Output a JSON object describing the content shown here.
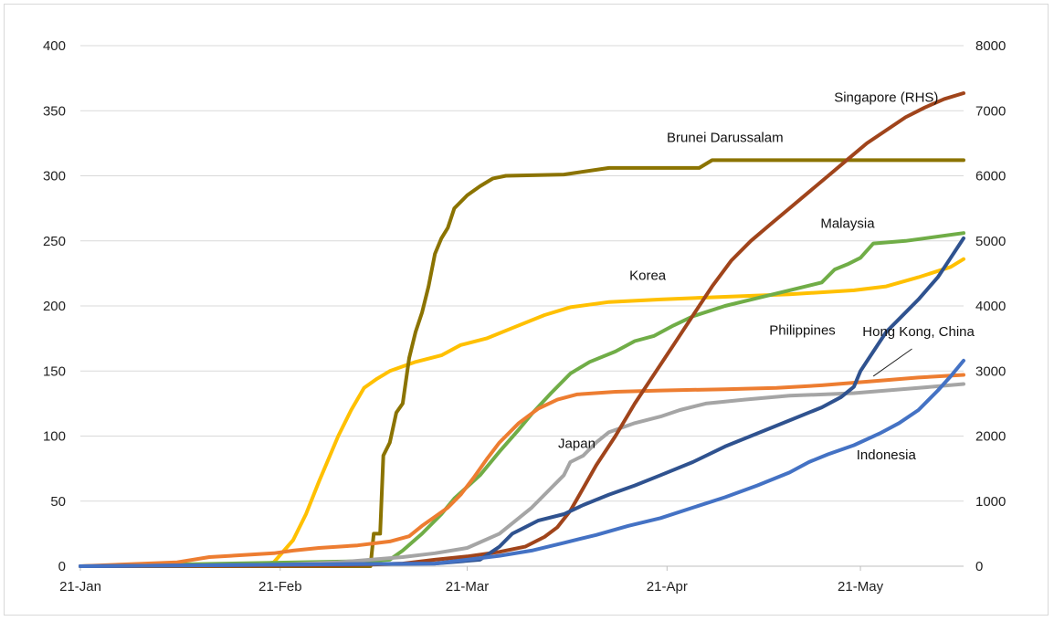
{
  "chart_data": {
    "type": "line",
    "x_labels": [
      "21-Jan",
      "21-Feb",
      "21-Mar",
      "21-Apr",
      "21-May"
    ],
    "x_range_days": [
      0,
      137
    ],
    "left_axis": {
      "ylim": [
        0,
        400
      ],
      "ticks": [
        "0",
        "50",
        "100",
        "150",
        "200",
        "250",
        "300",
        "350",
        "400"
      ]
    },
    "right_axis": {
      "ylim": [
        0,
        8000
      ],
      "ticks": [
        "0",
        "1000",
        "2000",
        "3000",
        "4000",
        "5000",
        "6000",
        "7000",
        "8000"
      ]
    },
    "grid": true,
    "series": [
      {
        "name": "Korea",
        "axis": "left",
        "color": "#FFC000",
        "points": [
          [
            0,
            0
          ],
          [
            27,
            0
          ],
          [
            30,
            3
          ],
          [
            33,
            20
          ],
          [
            35,
            40
          ],
          [
            37,
            65
          ],
          [
            40,
            100
          ],
          [
            42,
            120
          ],
          [
            44,
            137
          ],
          [
            46,
            144
          ],
          [
            48,
            150
          ],
          [
            52,
            157
          ],
          [
            56,
            162
          ],
          [
            59,
            170
          ],
          [
            63,
            175
          ],
          [
            67,
            183
          ],
          [
            72,
            193
          ],
          [
            76,
            199
          ],
          [
            82,
            203
          ],
          [
            90,
            205
          ],
          [
            100,
            207
          ],
          [
            110,
            209
          ],
          [
            120,
            212
          ],
          [
            125,
            215
          ],
          [
            130,
            222
          ],
          [
            135,
            230
          ],
          [
            137,
            236
          ]
        ]
      },
      {
        "name": "Brunei Darussalam",
        "axis": "left",
        "color": "#8B7300",
        "points": [
          [
            0,
            0
          ],
          [
            45,
            0
          ],
          [
            45.5,
            25
          ],
          [
            46.5,
            25
          ],
          [
            47,
            85
          ],
          [
            48,
            95
          ],
          [
            49,
            118
          ],
          [
            50,
            125
          ],
          [
            51,
            160
          ],
          [
            52,
            180
          ],
          [
            53,
            195
          ],
          [
            54,
            215
          ],
          [
            55,
            240
          ],
          [
            56,
            252
          ],
          [
            57,
            260
          ],
          [
            58,
            275
          ],
          [
            60,
            285
          ],
          [
            62,
            292
          ],
          [
            64,
            298
          ],
          [
            66,
            300
          ],
          [
            75,
            301
          ],
          [
            82,
            306
          ],
          [
            96,
            306
          ],
          [
            98,
            312
          ],
          [
            137,
            312
          ]
        ]
      },
      {
        "name": "Malaysia",
        "axis": "left",
        "color": "#70AD47",
        "points": [
          [
            0,
            0
          ],
          [
            45,
            4
          ],
          [
            48,
            5
          ],
          [
            50,
            12
          ],
          [
            53,
            25
          ],
          [
            56,
            40
          ],
          [
            58,
            52
          ],
          [
            62,
            70
          ],
          [
            65,
            88
          ],
          [
            68,
            105
          ],
          [
            70,
            117
          ],
          [
            73,
            133
          ],
          [
            76,
            148
          ],
          [
            79,
            157
          ],
          [
            83,
            165
          ],
          [
            86,
            173
          ],
          [
            89,
            177
          ],
          [
            92,
            185
          ],
          [
            95,
            192
          ],
          [
            100,
            200
          ],
          [
            105,
            206
          ],
          [
            110,
            212
          ],
          [
            115,
            218
          ],
          [
            117,
            228
          ],
          [
            119,
            232
          ],
          [
            121,
            237
          ],
          [
            123,
            248
          ],
          [
            128,
            250
          ],
          [
            137,
            256
          ]
        ]
      },
      {
        "name": "Hong Kong, China",
        "axis": "left",
        "color": "#ED7D31",
        "points": [
          [
            0,
            0
          ],
          [
            15,
            3
          ],
          [
            20,
            7
          ],
          [
            30,
            10
          ],
          [
            33,
            12
          ],
          [
            37,
            14
          ],
          [
            43,
            16
          ],
          [
            48,
            19
          ],
          [
            51,
            23
          ],
          [
            53,
            31
          ],
          [
            55,
            38
          ],
          [
            57,
            45
          ],
          [
            59,
            55
          ],
          [
            61,
            68
          ],
          [
            63,
            82
          ],
          [
            65,
            95
          ],
          [
            68,
            110
          ],
          [
            71,
            121
          ],
          [
            74,
            128
          ],
          [
            77,
            132
          ],
          [
            83,
            134
          ],
          [
            90,
            135
          ],
          [
            100,
            136
          ],
          [
            108,
            137
          ],
          [
            115,
            139
          ],
          [
            125,
            143
          ],
          [
            130,
            145
          ],
          [
            137,
            147
          ]
        ]
      },
      {
        "name": "Japan",
        "axis": "left",
        "color": "#A5A5A5",
        "points": [
          [
            0,
            0
          ],
          [
            30,
            1
          ],
          [
            40,
            3
          ],
          [
            45,
            5
          ],
          [
            50,
            7
          ],
          [
            55,
            10
          ],
          [
            60,
            14
          ],
          [
            65,
            25
          ],
          [
            70,
            45
          ],
          [
            73,
            60
          ],
          [
            75,
            70
          ],
          [
            76,
            80
          ],
          [
            78,
            85
          ],
          [
            80,
            95
          ],
          [
            82,
            103
          ],
          [
            86,
            110
          ],
          [
            90,
            115
          ],
          [
            93,
            120
          ],
          [
            97,
            125
          ],
          [
            103,
            128
          ],
          [
            110,
            131
          ],
          [
            120,
            133
          ],
          [
            130,
            137
          ],
          [
            137,
            140
          ]
        ]
      },
      {
        "name": "Singapore (RHS)",
        "axis": "right",
        "color": "#A0441B",
        "points": [
          [
            0,
            0
          ],
          [
            40,
            10
          ],
          [
            50,
            40
          ],
          [
            55,
            100
          ],
          [
            60,
            150
          ],
          [
            65,
            220
          ],
          [
            69,
            300
          ],
          [
            72,
            450
          ],
          [
            74,
            600
          ],
          [
            76,
            850
          ],
          [
            78,
            1200
          ],
          [
            80,
            1550
          ],
          [
            83,
            2000
          ],
          [
            86,
            2500
          ],
          [
            89,
            2950
          ],
          [
            92,
            3400
          ],
          [
            95,
            3850
          ],
          [
            98,
            4300
          ],
          [
            101,
            4700
          ],
          [
            104,
            5000
          ],
          [
            107,
            5250
          ],
          [
            110,
            5500
          ],
          [
            113,
            5750
          ],
          [
            116,
            6000
          ],
          [
            119,
            6250
          ],
          [
            122,
            6500
          ],
          [
            125,
            6700
          ],
          [
            128,
            6900
          ],
          [
            131,
            7050
          ],
          [
            134,
            7180
          ],
          [
            137,
            7270
          ]
        ]
      },
      {
        "name": "Philippines",
        "axis": "left",
        "color": "#2F528F",
        "points": [
          [
            0,
            0
          ],
          [
            55,
            2
          ],
          [
            62,
            5
          ],
          [
            65,
            15
          ],
          [
            67,
            25
          ],
          [
            69,
            30
          ],
          [
            71,
            35
          ],
          [
            75,
            40
          ],
          [
            78,
            47
          ],
          [
            82,
            55
          ],
          [
            86,
            62
          ],
          [
            90,
            70
          ],
          [
            95,
            80
          ],
          [
            100,
            92
          ],
          [
            105,
            102
          ],
          [
            110,
            112
          ],
          [
            115,
            122
          ],
          [
            118,
            130
          ],
          [
            120,
            138
          ],
          [
            121,
            150
          ],
          [
            123,
            165
          ],
          [
            125,
            180
          ],
          [
            127,
            190
          ],
          [
            130,
            205
          ],
          [
            133,
            222
          ],
          [
            135,
            237
          ],
          [
            137,
            252
          ]
        ]
      },
      {
        "name": "Indonesia",
        "axis": "left",
        "color": "#4472C4",
        "points": [
          [
            0,
            0
          ],
          [
            55,
            2
          ],
          [
            60,
            5
          ],
          [
            65,
            8
          ],
          [
            70,
            12
          ],
          [
            75,
            18
          ],
          [
            80,
            24
          ],
          [
            85,
            31
          ],
          [
            90,
            37
          ],
          [
            95,
            45
          ],
          [
            100,
            53
          ],
          [
            105,
            62
          ],
          [
            110,
            72
          ],
          [
            113,
            80
          ],
          [
            116,
            86
          ],
          [
            120,
            93
          ],
          [
            124,
            102
          ],
          [
            127,
            110
          ],
          [
            130,
            120
          ],
          [
            133,
            135
          ],
          [
            135,
            146
          ],
          [
            137,
            158
          ]
        ]
      }
    ],
    "annotations": [
      {
        "text": "Singapore (RHS)",
        "x": 125,
        "y": 357
      },
      {
        "text": "Brunei Darussalam",
        "x": 100,
        "y": 326
      },
      {
        "text": "Malaysia",
        "x": 119,
        "y": 260
      },
      {
        "text": "Korea",
        "x": 88,
        "y": 220
      },
      {
        "text": "Philippines",
        "x": 112,
        "y": 178
      },
      {
        "text": "Hong Kong, China",
        "x": 130,
        "y": 177
      },
      {
        "text": "Japan",
        "x": 77,
        "y": 91
      },
      {
        "text": "Indonesia",
        "x": 125,
        "y": 82
      }
    ],
    "leader_line": {
      "from": [
        129,
        167
      ],
      "to": [
        123,
        146
      ]
    }
  }
}
